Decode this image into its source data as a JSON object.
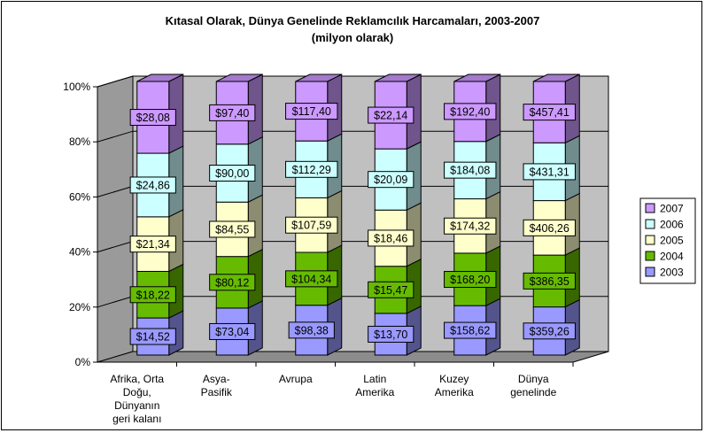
{
  "chart_data": {
    "type": "bar",
    "stacked": "percent",
    "title": "Kıtasal Olarak, Dünya Genelinde Reklamcılık Harcamaları, 2003-2007",
    "subtitle": "(milyon olarak)",
    "categories": [
      [
        "Afrika, Orta",
        "Doğu,",
        "Dünyanın",
        "geri kalanı"
      ],
      [
        "Asya-",
        "Pasifik"
      ],
      [
        "Avrupa"
      ],
      [
        "Latin",
        "Amerika"
      ],
      [
        "Kuzey",
        "Amerika"
      ],
      [
        "Dünya",
        "genelinde"
      ]
    ],
    "series": [
      {
        "name": "2003",
        "color": "#9999ff",
        "values": [
          14.52,
          73.04,
          98.38,
          13.7,
          158.62,
          359.26
        ],
        "labels": [
          "$14,52",
          "$73,04",
          "$98,38",
          "$13,70",
          "$158,62",
          "$359,26"
        ]
      },
      {
        "name": "2004",
        "color": "#66bb00",
        "values": [
          18.22,
          80.12,
          104.34,
          15.47,
          168.2,
          386.35
        ],
        "labels": [
          "$18,22",
          "$80,12",
          "$104,34",
          "$15,47",
          "$168,20",
          "$386,35"
        ]
      },
      {
        "name": "2005",
        "color": "#ffffcc",
        "values": [
          21.34,
          84.55,
          107.59,
          18.46,
          174.32,
          406.26
        ],
        "labels": [
          "$21,34",
          "$84,55",
          "$107,59",
          "$18,46",
          "$174,32",
          "$406,26"
        ]
      },
      {
        "name": "2006",
        "color": "#ccffff",
        "values": [
          24.86,
          90.0,
          112.29,
          20.09,
          184.08,
          431.31
        ],
        "labels": [
          "$24,86",
          "$90,00",
          "$112,29",
          "$20,09",
          "$184,08",
          "$431,31"
        ]
      },
      {
        "name": "2007",
        "color": "#cc99ff",
        "values": [
          28.08,
          97.4,
          117.4,
          22.14,
          192.4,
          457.41
        ],
        "labels": [
          "$28,08",
          "$97,40",
          "$117,40",
          "$22,14",
          "$192,40",
          "$457,41"
        ]
      }
    ],
    "yticks": [
      "0%",
      "20%",
      "40%",
      "60%",
      "80%",
      "100%"
    ],
    "ylim": [
      0,
      100
    ],
    "grid": true,
    "legend": "right",
    "wall_color": "#c0c0c0"
  }
}
